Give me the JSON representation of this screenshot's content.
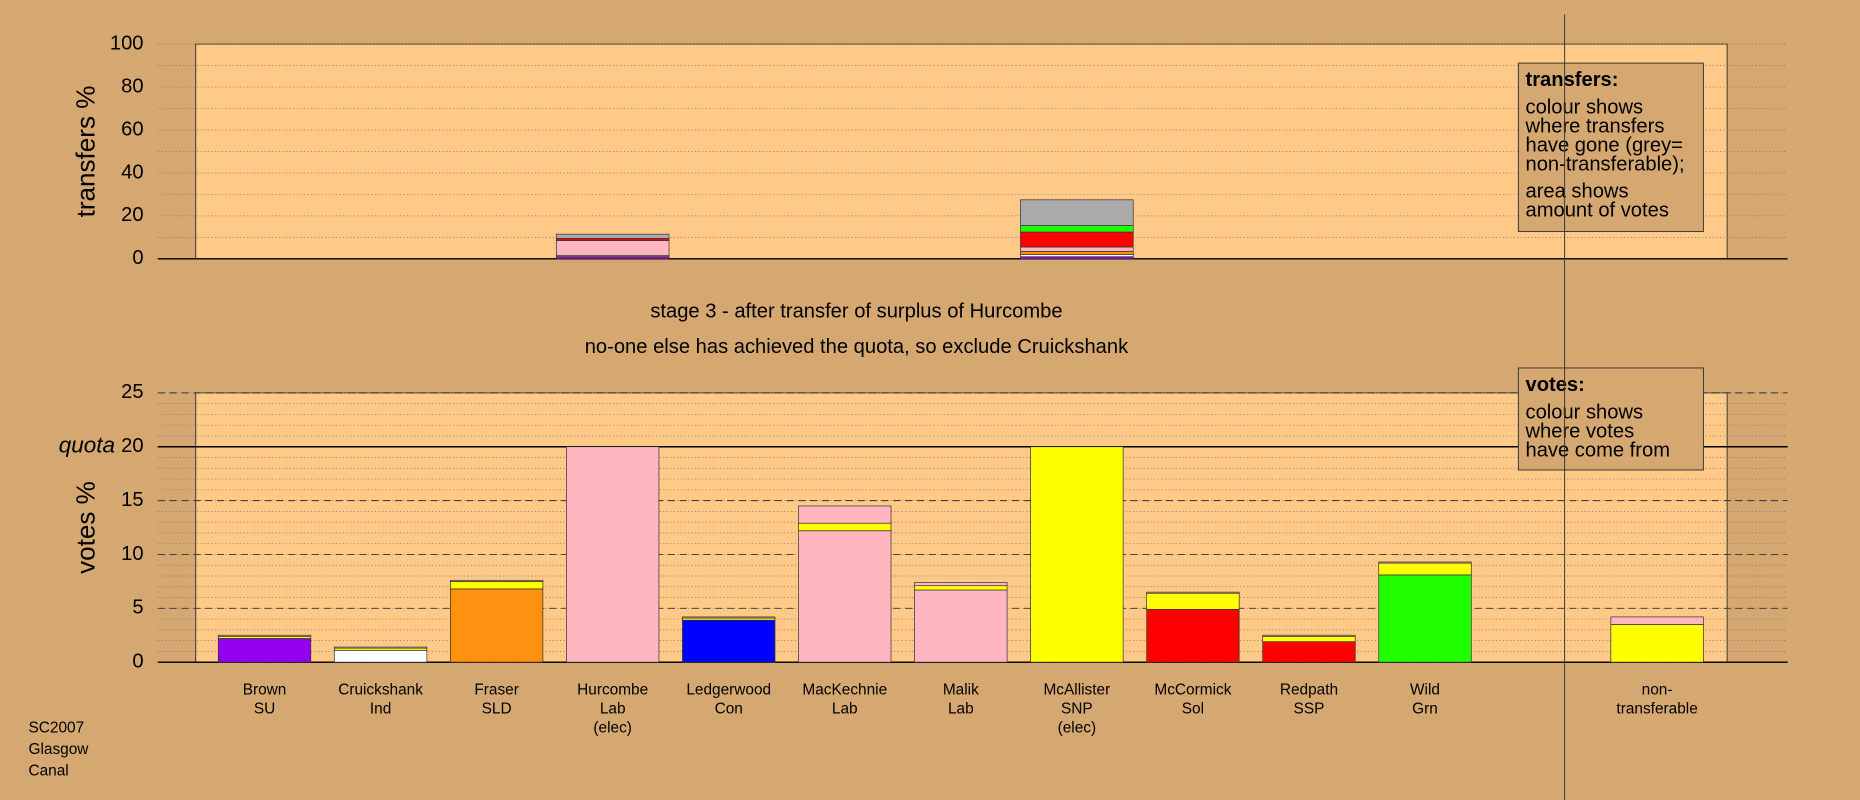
{
  "chart_data": [
    {
      "type": "bar",
      "stacked": true,
      "ylabel": "transfers %",
      "ylim": [
        0,
        100
      ],
      "yticks": [
        0,
        20,
        40,
        60,
        80,
        100
      ],
      "minor_ystep": 10,
      "grid": true,
      "annotation": [
        "transfers:",
        "colour shows",
        "where transfers",
        "have gone (grey=",
        "non-transferable);",
        "area shows",
        "amount of votes"
      ],
      "series": [
        {
          "color": "#9400f0",
          "values": [
            null,
            null,
            null,
            1,
            null,
            null,
            null,
            1,
            null,
            null,
            null,
            null,
            null
          ]
        },
        {
          "color": "#ffffff",
          "values": [
            null,
            null,
            null,
            0,
            null,
            null,
            null,
            1,
            null,
            null,
            null,
            null,
            null
          ]
        },
        {
          "color": "#ff9010",
          "values": [
            null,
            null,
            null,
            0.5,
            null,
            null,
            null,
            1.5,
            null,
            null,
            null,
            null,
            null
          ]
        },
        {
          "color": "#ffb6c1",
          "values": [
            null,
            null,
            null,
            7,
            null,
            null,
            null,
            2,
            null,
            null,
            null,
            null,
            null
          ]
        },
        {
          "color": "#ff0000",
          "values": [
            null,
            null,
            null,
            1,
            null,
            null,
            null,
            7,
            null,
            null,
            null,
            null,
            null
          ]
        },
        {
          "color": "#20ff00",
          "values": [
            null,
            null,
            null,
            0,
            null,
            null,
            null,
            3,
            null,
            null,
            null,
            null,
            null
          ]
        },
        {
          "color": "#aaaaaa",
          "values": [
            null,
            null,
            null,
            2,
            null,
            null,
            null,
            12,
            null,
            null,
            null,
            null,
            null
          ]
        }
      ]
    },
    {
      "type": "bar",
      "stacked": true,
      "ylabel": "votes %",
      "title": [
        "stage 3 - after transfer of surplus of Hurcombe",
        "no-one else has achieved the quota, so exclude Cruickshank"
      ],
      "ylim": [
        0,
        25
      ],
      "yticks": [
        0,
        5,
        10,
        15,
        20,
        25
      ],
      "minor_ystep": 1,
      "grid": true,
      "quota": 20,
      "quota_label": "quota",
      "annotation": [
        "votes:",
        "colour shows",
        "where votes",
        "have come from"
      ],
      "categories": [
        [
          "Brown",
          "SU"
        ],
        [
          "Cruickshank",
          "Ind"
        ],
        [
          "Fraser",
          "SLD"
        ],
        [
          "Hurcombe",
          "Lab",
          "(elec)"
        ],
        [
          "Ledgerwood",
          "Con"
        ],
        [
          "MacKechnie",
          "Lab"
        ],
        [
          "Malik",
          "Lab"
        ],
        [
          "McAllister",
          "SNP",
          "(elec)"
        ],
        [
          "McCormick",
          "Sol"
        ],
        [
          "Redpath",
          "SSP"
        ],
        [
          "Wild",
          "Grn"
        ],
        null,
        [
          "non-",
          "transferable"
        ]
      ],
      "series": [
        {
          "colors": [
            "#9400f0",
            "#ffffff",
            "#ff9010",
            "#ffb6c1",
            "#0000ff",
            "#ffb6c1",
            "#ffb6c1",
            "#ffff00",
            "#ff0000",
            "#ff0000",
            "#20ff00",
            null,
            "#ffff00"
          ],
          "values": [
            2.2,
            1.1,
            6.8,
            20,
            3.9,
            12.2,
            6.7,
            20,
            4.9,
            1.9,
            8.1,
            null,
            0
          ]
        },
        {
          "color": "#ffff00",
          "values": [
            0.2,
            0.2,
            0.7,
            0,
            0.2,
            0.7,
            0.4,
            0,
            1.5,
            0.5,
            1.1,
            null,
            3.5
          ]
        },
        {
          "color": "#ffb6c1",
          "values": [
            0.1,
            0.1,
            0.1,
            0,
            0.1,
            1.6,
            0.3,
            0,
            0.1,
            0.1,
            0.1,
            null,
            0.7
          ]
        }
      ]
    }
  ],
  "footer": [
    "SC2007",
    "Glasgow",
    "Canal"
  ]
}
